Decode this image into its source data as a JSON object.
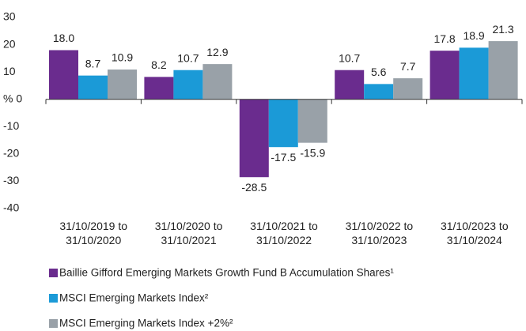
{
  "chart_data": {
    "type": "bar",
    "categories": [
      "31/10/2019 to 31/10/2020",
      "31/10/2020 to 31/10/2021",
      "31/10/2021 to 31/10/2022",
      "31/10/2022 to 31/10/2023",
      "31/10/2023 to 31/10/2024"
    ],
    "series": [
      {
        "name": "Baillie Gifford Emerging Markets Growth Fund B Accumulation Shares¹",
        "color": "#6a2c8e",
        "values": [
          18.0,
          8.2,
          -28.5,
          10.7,
          17.8
        ],
        "value_labels": [
          "18.0",
          "8.2",
          "-28.5",
          "10.7",
          "17.8"
        ]
      },
      {
        "name": "MSCI Emerging Markets Index²",
        "color": "#1b9ad7",
        "values": [
          8.7,
          10.7,
          -17.5,
          5.6,
          18.9
        ],
        "value_labels": [
          "8.7",
          "10.7",
          "-17.5",
          "5.6",
          "18.9"
        ]
      },
      {
        "name": "MSCI Emerging Markets Index +2%²",
        "color": "#99a1a8",
        "values": [
          10.9,
          12.9,
          -15.9,
          7.7,
          21.3
        ],
        "value_labels": [
          "10.9",
          "12.9",
          "-15.9",
          "7.7",
          "21.3"
        ]
      }
    ],
    "ylim": [
      -40,
      30
    ],
    "yticks": [
      30,
      20,
      10,
      {
        "value": 0,
        "label": "% 0"
      },
      -10,
      -20,
      -30,
      -40
    ],
    "legend": "bottom-left"
  }
}
